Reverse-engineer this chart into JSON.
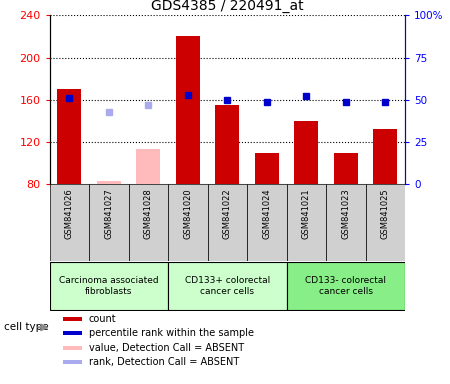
{
  "title": "GDS4385 / 220491_at",
  "samples": [
    "GSM841026",
    "GSM841027",
    "GSM841028",
    "GSM841020",
    "GSM841022",
    "GSM841024",
    "GSM841021",
    "GSM841023",
    "GSM841025"
  ],
  "bar_values": [
    170,
    null,
    null,
    220,
    155,
    110,
    140,
    110,
    132
  ],
  "bar_absent_values": [
    null,
    83,
    113,
    null,
    null,
    null,
    null,
    null,
    null
  ],
  "bar_color_present": "#cc0000",
  "bar_color_absent": "#ffbbbb",
  "rank_present": [
    51,
    null,
    null,
    53,
    50,
    49,
    52,
    49,
    49
  ],
  "rank_absent": [
    null,
    43,
    47,
    null,
    null,
    null,
    null,
    null,
    null
  ],
  "rank_present_color": "#0000cc",
  "rank_absent_color": "#aaaaee",
  "ylim_left": [
    80,
    240
  ],
  "ylim_right": [
    0,
    100
  ],
  "yticks_left": [
    80,
    120,
    160,
    200,
    240
  ],
  "yticks_right": [
    0,
    25,
    50,
    75,
    100
  ],
  "ytick_labels_right": [
    "0",
    "25",
    "50",
    "75",
    "100%"
  ],
  "group_configs": [
    {
      "label": "Carcinoma associated\nfibroblasts",
      "start": 0,
      "end": 2,
      "color": "#ccffcc"
    },
    {
      "label": "CD133+ colorectal\ncancer cells",
      "start": 3,
      "end": 5,
      "color": "#ccffcc"
    },
    {
      "label": "CD133- colorectal\ncancer cells",
      "start": 6,
      "end": 8,
      "color": "#88ee88"
    }
  ],
  "legend_items": [
    {
      "label": "count",
      "color": "#cc0000"
    },
    {
      "label": "percentile rank within the sample",
      "color": "#0000cc"
    },
    {
      "label": "value, Detection Call = ABSENT",
      "color": "#ffbbbb"
    },
    {
      "label": "rank, Detection Call = ABSENT",
      "color": "#aaaaee"
    }
  ],
  "bar_bottom": 80,
  "cell_type_label": "cell type",
  "sample_box_color": "#d0d0d0",
  "plot_bg": "#ffffff"
}
